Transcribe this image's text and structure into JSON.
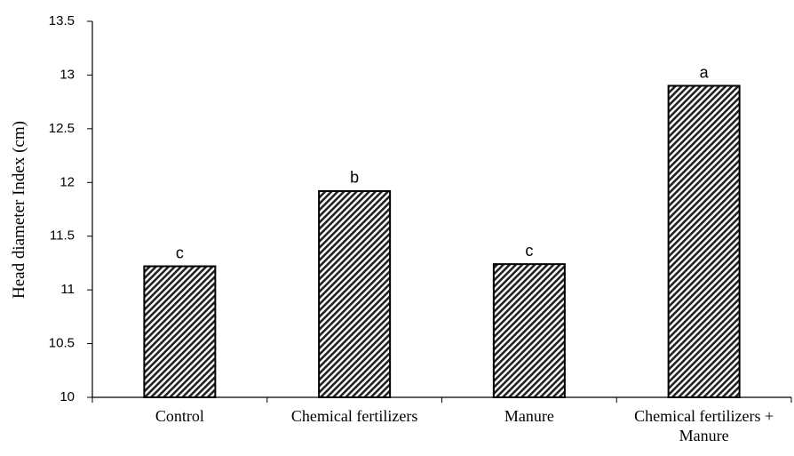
{
  "chart_data": {
    "type": "bar",
    "ylabel": "Head diameter Index (cm)",
    "categories": [
      "Control",
      "Chemical fertilizers",
      "Manure",
      "Chemical fertilizers + Manure"
    ],
    "values": [
      11.22,
      11.92,
      11.24,
      12.9
    ],
    "annotations": [
      "c",
      "b",
      "c",
      "a"
    ],
    "color": "#000000",
    "ylim": [
      10,
      13.5
    ],
    "yticks": [
      10,
      10.5,
      11,
      11.5,
      12,
      12.5,
      13,
      13.5
    ],
    "grid": false
  }
}
